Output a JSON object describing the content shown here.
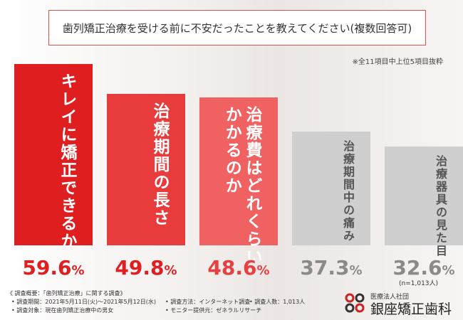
{
  "chart_data": {
    "type": "bar",
    "title": "歯列矯正治療を受ける前に不安だったことを教えてください(複数回答可)",
    "note": "※全11項目中上位5項目抜粋",
    "categories": [
      "キレイに矯正できるか",
      "治療期間の長さ",
      "治療費はどれくらい\nかかるのか",
      "治療期間中の痛み",
      "治療器具の見た目"
    ],
    "values": [
      59.6,
      49.8,
      48.6,
      37.3,
      32.6
    ],
    "value_labels": [
      "59.6%",
      "49.8%",
      "48.6%",
      "37.3%",
      "32.6%"
    ],
    "colors": [
      "#df1f1f",
      "#e83c3c",
      "#f06262",
      "#cfcfcf",
      "#cfcfcf"
    ],
    "label_colors": [
      "#ffffff",
      "#ffffff",
      "#ffffff",
      "#555555",
      "#555555"
    ],
    "value_colors": [
      "#e02020",
      "#e02020",
      "#e64040",
      "#8a8a8a",
      "#8a8a8a"
    ],
    "sample_size": "(n=1,013人)"
  },
  "footer": {
    "lines": [
      "《 調査概要：「歯列矯正治療」に関する調査》",
      "• 調査期間：2021年5月11日(火)～2021年5月12日(水)",
      "• 調査方法：インターネット調査",
      "• 調査人数：1,013人",
      "• 調査対象：現在歯列矯正治療中の男女",
      "• モニター提供元：ゼネラルリサーチ"
    ],
    "logo_sub": "医療法人社団",
    "logo": "銀座矯正歯科"
  }
}
